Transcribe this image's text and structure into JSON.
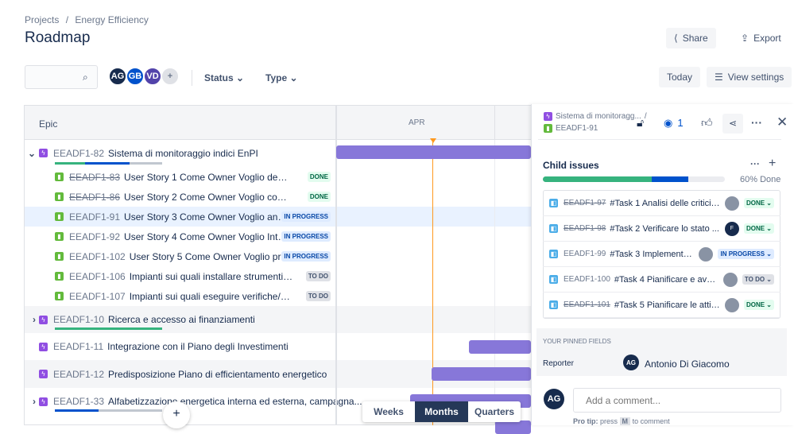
{
  "breadcrumb": {
    "projects": "Projects",
    "separator": "/",
    "project": "Energy Efficiency"
  },
  "page_title": "Roadmap",
  "header_actions": {
    "share": "Share",
    "export": "Export"
  },
  "toolbar": {
    "search_placeholder": "",
    "avatars": [
      {
        "initials": "AG",
        "color": "#172b4d"
      },
      {
        "initials": "GB",
        "color": "#0052cc"
      },
      {
        "initials": "VD",
        "color": "#5243aa"
      }
    ],
    "status": "Status",
    "type": "Type",
    "today": "Today",
    "view_settings": "View settings"
  },
  "roadmap": {
    "column_header": "Epic",
    "month": "APR",
    "rows": [
      {
        "key": "EEADF1-82",
        "summary": "Sistema di monitoraggio indici EnPI",
        "type": "epic",
        "expand": "⌄",
        "progress": {
          "done": 0.28,
          "in_progress": 0.42
        }
      },
      {
        "key": "EEADF1-83",
        "summary": "User Story 1 Come Owner Voglio definire gli i...",
        "type": "story",
        "status": "DONE",
        "strike": true
      },
      {
        "key": "EEADF1-86",
        "summary": "User Story 2 Come Owner Voglio conoscere lo ...",
        "type": "story",
        "status": "DONE",
        "strike": true
      },
      {
        "key": "EEADF1-91",
        "summary": "User Story 3 Come Owner Voglio analizz...",
        "type": "story",
        "status": "IN PROGRESS",
        "selected": true
      },
      {
        "key": "EEADF1-92",
        "summary": "User Story 4 Come Owner Voglio Integra...",
        "type": "story",
        "status": "IN PROGRESS"
      },
      {
        "key": "EEADF1-102",
        "summary": "User Story 5 Come Owner Voglio predi...",
        "type": "story",
        "status": "IN PROGRESS"
      },
      {
        "key": "EEADF1-106",
        "summary": "Impianti sui quali installare strumenti EE: - Pit...",
        "type": "story",
        "status": "TO DO"
      },
      {
        "key": "EEADF1-107",
        "summary": "Impianti sui quali eseguire verifiche/manuten...",
        "type": "story",
        "status": "TO DO"
      },
      {
        "key": "EEADF1-10",
        "summary": "Ricerca e accesso ai finanziamenti",
        "type": "epic",
        "expand": "›",
        "progress": {
          "done": 1.0,
          "in_progress": 0
        }
      },
      {
        "key": "EEADF1-11",
        "summary": "Integrazione con il Piano degli Investimenti",
        "type": "epic"
      },
      {
        "key": "EEADF1-12",
        "summary": "Predisposizione Piano di efficientamento energetico",
        "type": "epic"
      },
      {
        "key": "EEADF1-33",
        "summary": "Alfabetizzazione energetica interna ed esterna, campagna...",
        "type": "epic",
        "expand": "›",
        "progress": {
          "done": 0,
          "in_progress": 0.41
        }
      }
    ],
    "view_modes": [
      "Weeks",
      "Months",
      "Quarters"
    ],
    "active_view": "Months",
    "add": "+"
  },
  "detail": {
    "parent": "Sistema di monitoragg...",
    "parent_sep": "/",
    "key": "EEADF1-91",
    "watchers": "1",
    "child_issues": {
      "title": "Child issues",
      "percent": "60% Done",
      "done_fraction": 0.6,
      "in_progress_fraction": 0.2,
      "items": [
        {
          "key": "EEADF1-97",
          "summary": "#Task 1 Analisi delle criticit...",
          "status": "DONE",
          "strike": true,
          "assignee": ""
        },
        {
          "key": "EEADF1-98",
          "summary": "#Task 2 Verificare lo stato ...",
          "status": "DONE",
          "strike": true,
          "assignee": "F"
        },
        {
          "key": "EEADF1-99",
          "summary": "#Task 3 Implementa...",
          "status": "IN PROGRESS",
          "assignee": ""
        },
        {
          "key": "EEADF1-100",
          "summary": "#Task 4 Pianificare e avvi...",
          "status": "TO DO",
          "assignee": ""
        },
        {
          "key": "EEADF1-101",
          "summary": "#Task 5 Pianificare le attivi...",
          "status": "DONE",
          "strike": true,
          "assignee": ""
        }
      ]
    },
    "pinned": {
      "title": "YOUR PINNED FIELDS",
      "reporter_label": "Reporter",
      "reporter_initials": "AG",
      "reporter_name": "Antonio Di Giacomo"
    },
    "comment": {
      "initials": "AG",
      "placeholder": "Add a comment...",
      "tip_bold": "Pro tip:",
      "tip_pre": "press",
      "tip_key": "M",
      "tip_post": "to comment"
    }
  }
}
